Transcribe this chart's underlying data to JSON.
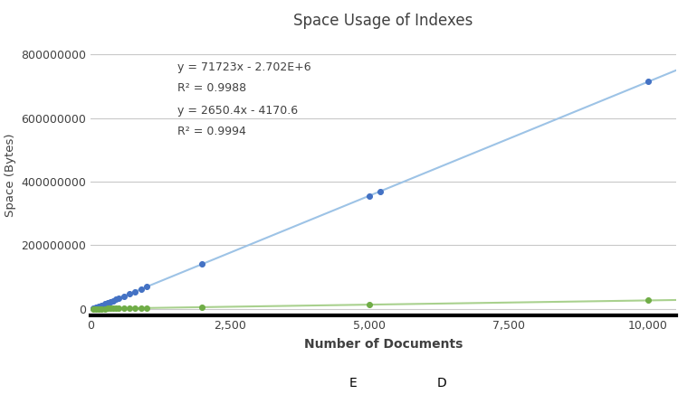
{
  "title": "Space Usage of Indexes",
  "xlabel": "Number of Documents",
  "ylabel": "Space (Bytes)",
  "xlim": [
    0,
    10500
  ],
  "ylim": [
    -20000000,
    860000000
  ],
  "xticks": [
    0,
    2500,
    5000,
    7500,
    10000
  ],
  "yticks": [
    0,
    200000000,
    400000000,
    600000000,
    800000000
  ],
  "background_color": "#ffffff",
  "plot_background": "#ffffff",
  "E_slope": 71723,
  "E_intercept": -2702000,
  "D_slope": 2650.4,
  "D_intercept": -4170.6,
  "E_x_data": [
    50,
    100,
    150,
    200,
    250,
    300,
    350,
    400,
    450,
    500,
    600,
    700,
    800,
    900,
    1000,
    2000,
    5000,
    5200,
    10000
  ],
  "D_x_data": [
    50,
    100,
    150,
    200,
    250,
    300,
    350,
    400,
    450,
    500,
    600,
    700,
    800,
    900,
    1000,
    2000,
    5000,
    10000
  ],
  "E_color": "#4472C4",
  "D_color": "#70AD47",
  "E_trendline_color": "#9DC3E6",
  "D_trendline_color": "#A9D18E",
  "annotation_color": "#404040",
  "annotation_E_eq": "y = 71723x - 2.702E+6",
  "annotation_E_r2": "R² = 0.9988",
  "annotation_D_eq": "y = 2650.4x - 4170.6",
  "annotation_D_r2": "R² = 0.9994",
  "title_color": "#404040",
  "axis_label_color": "#404040",
  "grid_color": "#C8C8C8"
}
